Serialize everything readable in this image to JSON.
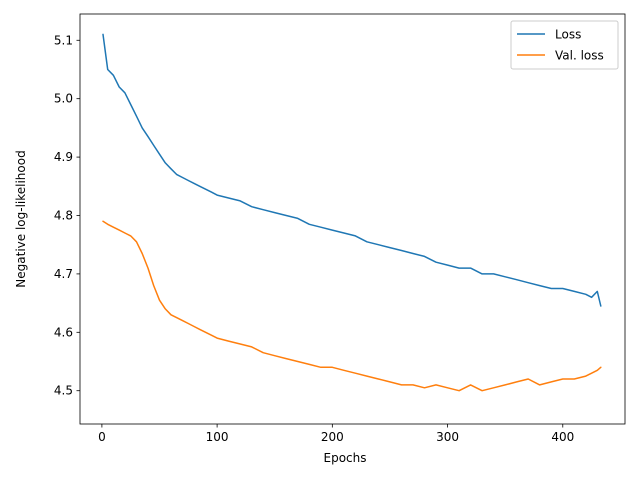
{
  "chart_data": {
    "type": "line",
    "title": "",
    "xlabel": "Epochs",
    "ylabel": "Negative log-likelihood",
    "xlim": [
      -19,
      454
    ],
    "ylim": [
      4.443,
      5.145
    ],
    "xticks": [
      0,
      100,
      200,
      300,
      400
    ],
    "yticks": [
      4.5,
      4.6,
      4.7,
      4.8,
      4.9,
      5.0,
      5.1
    ],
    "ytick_labels": [
      "4.5",
      "4.6",
      "4.7",
      "4.8",
      "4.9",
      "5.0",
      "5.1"
    ],
    "grid": false,
    "legend_position": "top-right",
    "x": [
      1,
      5,
      10,
      15,
      20,
      25,
      30,
      35,
      40,
      45,
      50,
      55,
      60,
      65,
      70,
      75,
      80,
      85,
      90,
      95,
      100,
      110,
      120,
      130,
      140,
      150,
      160,
      170,
      180,
      190,
      200,
      210,
      220,
      230,
      240,
      250,
      260,
      270,
      280,
      290,
      300,
      310,
      320,
      330,
      340,
      350,
      360,
      370,
      380,
      390,
      400,
      410,
      420,
      425,
      430,
      433
    ],
    "series": [
      {
        "name": "Loss",
        "color": "#1f77b4",
        "values": [
          5.11,
          5.05,
          5.04,
          5.02,
          5.01,
          4.99,
          4.97,
          4.95,
          4.935,
          4.92,
          4.905,
          4.89,
          4.88,
          4.87,
          4.865,
          4.86,
          4.855,
          4.85,
          4.845,
          4.84,
          4.835,
          4.83,
          4.825,
          4.815,
          4.81,
          4.805,
          4.8,
          4.795,
          4.785,
          4.78,
          4.775,
          4.77,
          4.765,
          4.755,
          4.75,
          4.745,
          4.74,
          4.735,
          4.73,
          4.72,
          4.715,
          4.71,
          4.71,
          4.7,
          4.7,
          4.695,
          4.69,
          4.685,
          4.68,
          4.675,
          4.675,
          4.67,
          4.665,
          4.66,
          4.67,
          4.645
        ]
      },
      {
        "name": "Val. loss",
        "color": "#ff7f0e",
        "values": [
          4.79,
          4.785,
          4.78,
          4.775,
          4.77,
          4.765,
          4.755,
          4.735,
          4.71,
          4.68,
          4.655,
          4.64,
          4.63,
          4.625,
          4.62,
          4.615,
          4.61,
          4.605,
          4.6,
          4.595,
          4.59,
          4.585,
          4.58,
          4.575,
          4.565,
          4.56,
          4.555,
          4.55,
          4.545,
          4.54,
          4.54,
          4.535,
          4.53,
          4.525,
          4.52,
          4.515,
          4.51,
          4.51,
          4.505,
          4.51,
          4.505,
          4.5,
          4.51,
          4.5,
          4.505,
          4.51,
          4.515,
          4.52,
          4.51,
          4.515,
          4.52,
          4.52,
          4.525,
          4.53,
          4.535,
          4.54
        ]
      }
    ]
  }
}
